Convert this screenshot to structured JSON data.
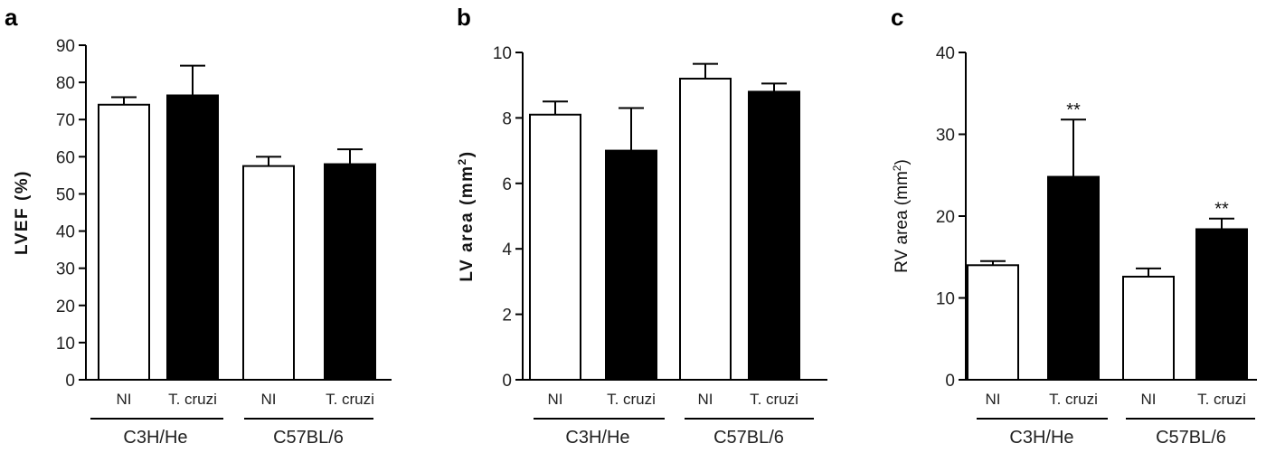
{
  "chart_data": [
    {
      "type": "bar",
      "panel_label": "a",
      "ylabel": "LVEF (%)",
      "ylabel_bold": true,
      "ylim": [
        0,
        90
      ],
      "yticks": [
        "0",
        "10",
        "20",
        "30",
        "40",
        "50",
        "60",
        "70",
        "80",
        "90"
      ],
      "tick_values": [
        0,
        10,
        20,
        30,
        40,
        50,
        60,
        70,
        80,
        90
      ],
      "categories": [
        "NI",
        "T. cruzi",
        "NI",
        "T. cruzi"
      ],
      "groups": [
        "C3H/He",
        "C57BL/6"
      ],
      "bar_fill": [
        "#ffffff",
        "#000000",
        "#ffffff",
        "#000000"
      ],
      "values": [
        74,
        76.5,
        57.5,
        58
      ],
      "errors": [
        2,
        8,
        2.5,
        4
      ],
      "significance": [
        "",
        "",
        "",
        ""
      ]
    },
    {
      "type": "bar",
      "panel_label": "b",
      "ylabel": "LV area (mm",
      "ylabel_sup": "2",
      "ylabel_close": ")",
      "ylabel_bold": true,
      "ylim": [
        0,
        10
      ],
      "yticks": [
        "0",
        "2",
        "4",
        "6",
        "8",
        "10"
      ],
      "tick_values": [
        0,
        2,
        4,
        6,
        8,
        10
      ],
      "categories": [
        "NI",
        "T. cruzi",
        "NI",
        "T. cruzi"
      ],
      "groups": [
        "C3H/He",
        "C57BL/6"
      ],
      "bar_fill": [
        "#ffffff",
        "#000000",
        "#ffffff",
        "#000000"
      ],
      "values": [
        8.1,
        7.0,
        9.2,
        8.8
      ],
      "errors": [
        0.4,
        1.3,
        0.45,
        0.25
      ],
      "significance": [
        "",
        "",
        "",
        ""
      ]
    },
    {
      "type": "bar",
      "panel_label": "c",
      "ylabel": "RV area (mm",
      "ylabel_sup": "2",
      "ylabel_close": ")",
      "ylabel_bold": false,
      "ylim": [
        0,
        40
      ],
      "yticks": [
        "0",
        "10",
        "20",
        "30",
        "40"
      ],
      "tick_values": [
        0,
        10,
        20,
        30,
        40
      ],
      "categories": [
        "NI",
        "T. cruzi",
        "NI",
        "T. cruzi"
      ],
      "groups": [
        "C3H/He",
        "C57BL/6"
      ],
      "bar_fill": [
        "#ffffff",
        "#000000",
        "#ffffff",
        "#000000"
      ],
      "values": [
        14,
        24.8,
        12.6,
        18.4
      ],
      "errors": [
        0.5,
        7,
        1,
        1.3
      ],
      "significance": [
        "",
        "**",
        "",
        "**"
      ]
    }
  ]
}
